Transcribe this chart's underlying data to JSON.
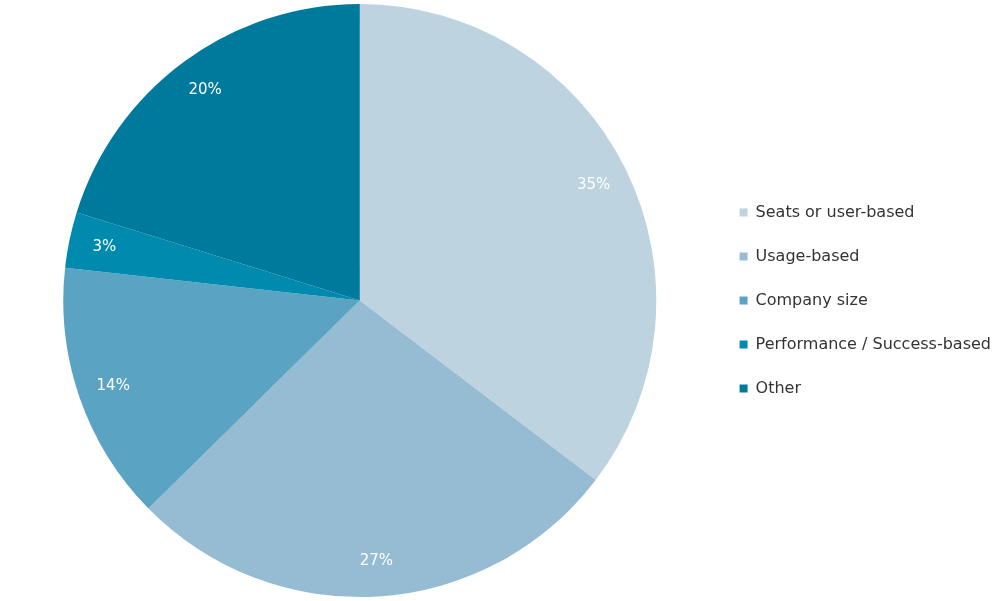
{
  "chart_data": {
    "type": "pie",
    "categories": [
      "Seats or user-based",
      "Usage-based",
      "Company size",
      "Performance / Success-based",
      "Other"
    ],
    "values": [
      35,
      27,
      14,
      3,
      20
    ],
    "colors": [
      "#bdd3e0",
      "#96bcd3",
      "#5aa3c3",
      "#008aae",
      "#007a9c"
    ],
    "value_labels": [
      "35%",
      "27%",
      "14%",
      "3%",
      "20%"
    ],
    "legend": "right"
  }
}
